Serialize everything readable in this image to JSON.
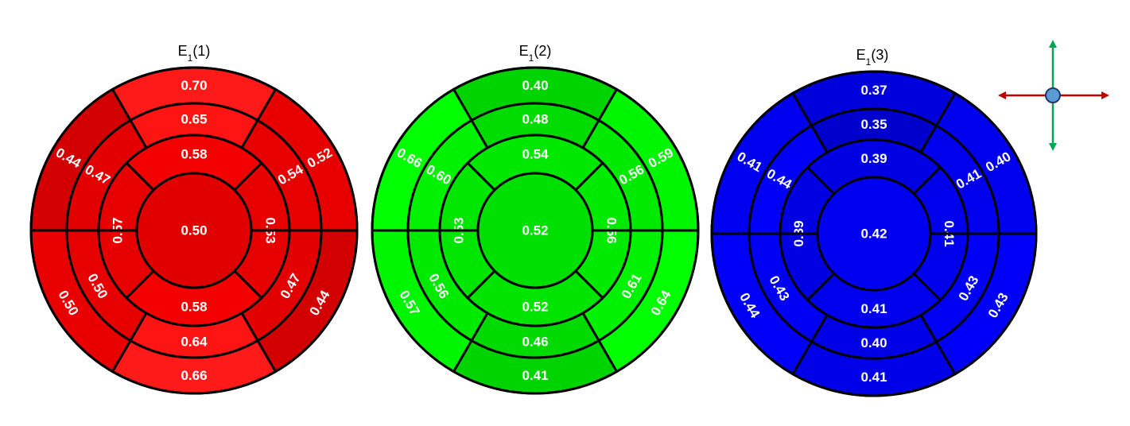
{
  "diagrams": [
    {
      "title_main": "E",
      "title_sub": "1",
      "title_tail": "(1)",
      "base_color": "#E60000",
      "outer_ring": {
        "values": [
          "0.70",
          "0.52",
          "0.44",
          "0.66",
          "0.50",
          "0.44"
        ],
        "colors": [
          "#FF1A1A",
          "#E80000",
          "#D20000",
          "#FF1A1A",
          "#E80000",
          "#D20000"
        ]
      },
      "middle_ring": {
        "values": [
          "0.65",
          "0.54",
          "0.47",
          "0.64",
          "0.50",
          "0.47"
        ],
        "colors": [
          "#FF1414",
          "#E60000",
          "#E20000",
          "#FF1414",
          "#E60000",
          "#E20000"
        ]
      },
      "inner_ring": {
        "values": [
          "0.58",
          "0.53",
          "0.58",
          "0.57"
        ],
        "colors": [
          "#F50000",
          "#E60000",
          "#F50000",
          "#E60000"
        ]
      },
      "apex": {
        "value": "0.50",
        "color": "#E00000"
      }
    },
    {
      "title_main": "E",
      "title_sub": "1",
      "title_tail": "(2)",
      "base_color": "#00E600",
      "outer_ring": {
        "values": [
          "0.40",
          "0.59",
          "0.64",
          "0.41",
          "0.57",
          "0.66"
        ],
        "colors": [
          "#00D400",
          "#00F500",
          "#00FF00",
          "#00D400",
          "#00F500",
          "#00FF00"
        ]
      },
      "middle_ring": {
        "values": [
          "0.48",
          "0.56",
          "0.61",
          "0.46",
          "0.56",
          "0.60"
        ],
        "colors": [
          "#00DC00",
          "#00EA00",
          "#00F200",
          "#00DA00",
          "#00EA00",
          "#00F200"
        ]
      },
      "inner_ring": {
        "values": [
          "0.54",
          "0.56",
          "0.52",
          "0.53"
        ],
        "colors": [
          "#00E800",
          "#00EA00",
          "#00E400",
          "#00E600"
        ]
      },
      "apex": {
        "value": "0.52",
        "color": "#00E000"
      }
    },
    {
      "title_main": "E",
      "title_sub": "1",
      "title_tail": "(3)",
      "base_color": "#0000F0",
      "outer_ring": {
        "values": [
          "0.37",
          "0.40",
          "0.43",
          "0.41",
          "0.44",
          "0.41"
        ],
        "colors": [
          "#0000DC",
          "#0000EE",
          "#0000F8",
          "#0000E8",
          "#0000FA",
          "#0000F0"
        ]
      },
      "middle_ring": {
        "values": [
          "0.35",
          "0.41",
          "0.43",
          "0.40",
          "0.43",
          "0.44"
        ],
        "colors": [
          "#0000CC",
          "#0000EC",
          "#0000F4",
          "#0000E6",
          "#0000F4",
          "#0000F8"
        ]
      },
      "inner_ring": {
        "values": [
          "0.39",
          "0.41",
          "0.41",
          "0.39"
        ],
        "colors": [
          "#0000E2",
          "#0000EC",
          "#0000EC",
          "#0000E2"
        ]
      },
      "apex": {
        "value": "0.42",
        "color": "#0000F0"
      }
    }
  ],
  "orientation_icon": {
    "vertical_color": "#00A651",
    "horizontal_color": "#C00000",
    "center_color": "#5B9BD5"
  }
}
